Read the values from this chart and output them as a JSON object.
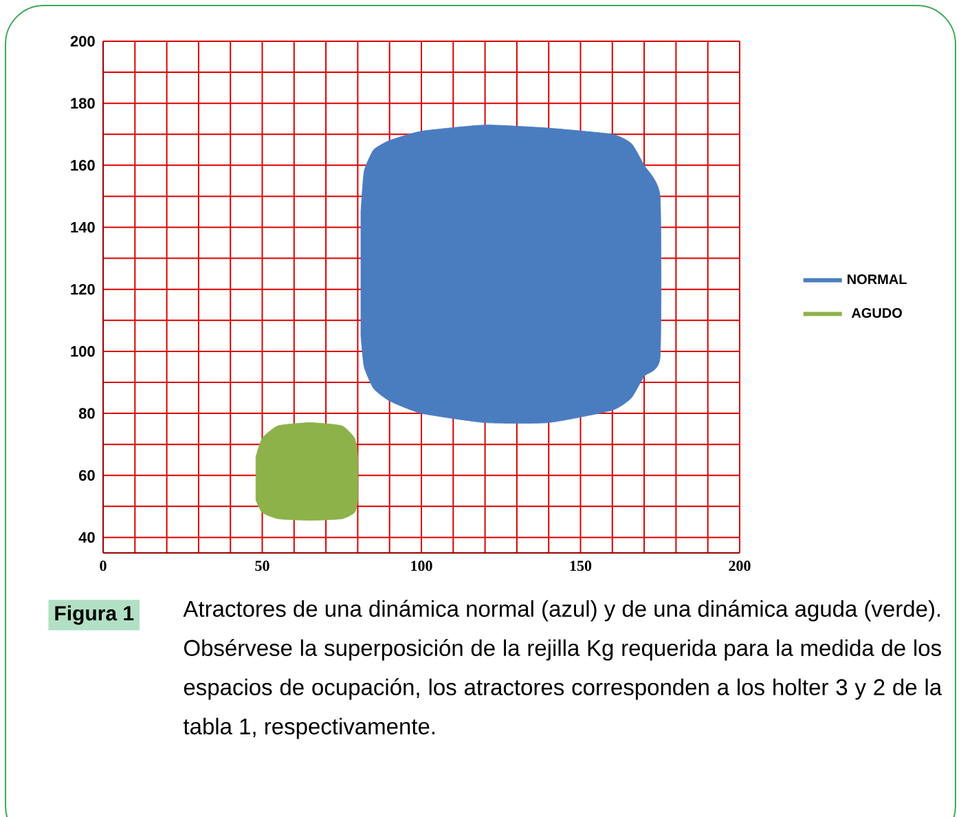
{
  "chart_data": {
    "type": "area",
    "xlim": [
      0,
      200
    ],
    "ylim": [
      35,
      200
    ],
    "xticks": [
      0,
      50,
      100,
      150,
      200
    ],
    "yticks": [
      40,
      60,
      80,
      100,
      120,
      140,
      160,
      180,
      200
    ],
    "grid": true,
    "legend": "right",
    "series": [
      {
        "name": "NORMAL",
        "color": "#4a7cc0",
        "x": [
          81,
          82,
          85,
          90,
          100,
          120,
          140,
          160,
          166,
          170,
          175,
          175,
          170,
          166,
          160,
          140,
          120,
          100,
          90,
          85,
          82,
          81
        ],
        "values": [
          145,
          158,
          165,
          168,
          171,
          173,
          172,
          170,
          167,
          160,
          150,
          98,
          92,
          85,
          81,
          77,
          77,
          80,
          84,
          88,
          95,
          105
        ]
      },
      {
        "name": "AGUDO",
        "color": "#8db24a",
        "x": [
          48,
          50,
          55,
          65,
          75,
          79,
          80,
          80,
          79,
          75,
          65,
          55,
          50,
          48
        ],
        "values": [
          66,
          72,
          76,
          77,
          76,
          72,
          66,
          52,
          48,
          46,
          45.5,
          46,
          48,
          52
        ]
      }
    ],
    "annotations": [
      "Figura 1",
      "Atractores de una dinámica normal (azul) y de una dinámica aguda (verde). Obsérvese la superposición de la rejilla Kg requerida para la medida de los espacios de ocupación, los atractores corresponden a los holter 3 y 2 de la tabla 1, respectivamente."
    ]
  }
}
